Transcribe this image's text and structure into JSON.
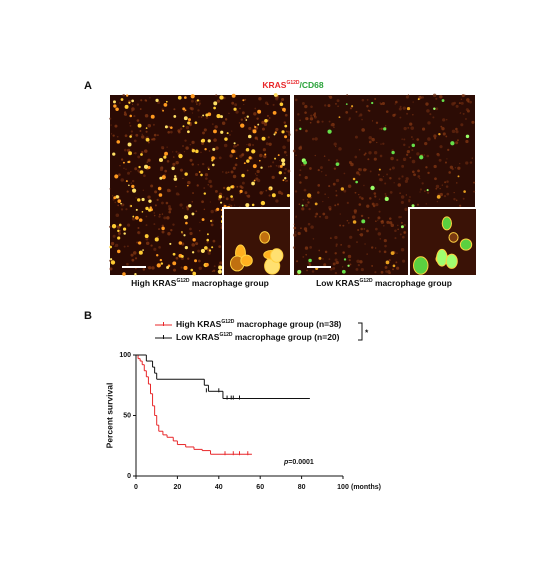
{
  "panel_a": {
    "label": "A",
    "title_parts": [
      "KRAS",
      "G12D",
      "/CD68"
    ],
    "images": [
      {
        "label_parts": [
          "High KRAS",
          "G12D",
          " macrophage group"
        ]
      },
      {
        "label_parts": [
          "Low KRAS",
          "G12D",
          " macrophage group"
        ]
      }
    ]
  },
  "chart_data": {
    "type": "step",
    "panel_label": "B",
    "ylabel": "Percent survival",
    "xlabel": "(months)",
    "xlim": [
      0,
      100
    ],
    "xticks": [
      0,
      20,
      40,
      60,
      80,
      100
    ],
    "ylim": [
      0,
      100
    ],
    "yticks": [
      0,
      50,
      100
    ],
    "annotation_parts": [
      "p",
      "=0.0001"
    ],
    "significance": "*",
    "series": [
      {
        "name_parts": [
          "High KRAS",
          "G12D",
          " macrophage group (n=38)"
        ],
        "color": "#e8272a",
        "x": [
          0,
          1,
          2,
          3,
          4,
          5,
          6,
          7,
          8,
          9,
          10,
          11,
          13,
          15,
          18,
          20,
          24,
          28,
          32,
          36,
          56
        ],
        "values": [
          100,
          97,
          95,
          92,
          87,
          82,
          76,
          68,
          58,
          50,
          42,
          37,
          34,
          32,
          29,
          26,
          24,
          22,
          21,
          18,
          18
        ],
        "censored_x": [
          43,
          47,
          50,
          54
        ],
        "censored_values": [
          18,
          18,
          18,
          18
        ]
      },
      {
        "name_parts": [
          "Low KRAS",
          "G12D",
          " macrophage group (n=20)"
        ],
        "color": "#111111",
        "x": [
          0,
          5,
          8,
          9,
          10,
          33,
          35,
          42,
          84
        ],
        "values": [
          100,
          95,
          90,
          85,
          80,
          75,
          70,
          64,
          64
        ],
        "censored_x": [
          34,
          40,
          44,
          46,
          47,
          50
        ],
        "censored_values": [
          70,
          70,
          64,
          64,
          64,
          64
        ]
      }
    ]
  }
}
